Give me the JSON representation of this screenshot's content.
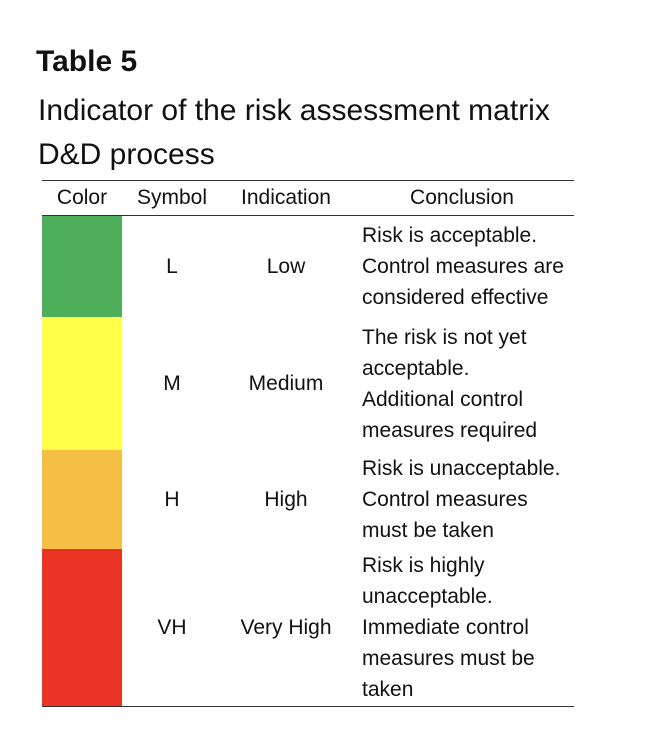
{
  "title": {
    "label": "Table 5",
    "caption_line1": "Indicator of the risk assessment matrix",
    "caption_line2": "D&D process"
  },
  "table": {
    "headers": [
      "Color",
      "Symbol",
      "Indication",
      "Conclusion"
    ],
    "rows": [
      {
        "color": "#4fae5a",
        "symbol": "L",
        "indication": "Low",
        "conclusion": "Risk is acceptable.\nControl measures are\nconsidered effective"
      },
      {
        "color": "#ffff4a",
        "symbol": "M",
        "indication": "Medium",
        "conclusion": "The risk is not yet\nacceptable.\nAdditional control\nmeasures required"
      },
      {
        "color": "#f5bf45",
        "symbol": "H",
        "indication": "High",
        "conclusion": "Risk is unacceptable.\nControl measures\nmust be taken"
      },
      {
        "color": "#e93425",
        "symbol": "VH",
        "indication": "Very High",
        "conclusion": "Risk is highly\nunacceptable.\nImmediate control\nmeasures must be\ntaken"
      }
    ]
  }
}
